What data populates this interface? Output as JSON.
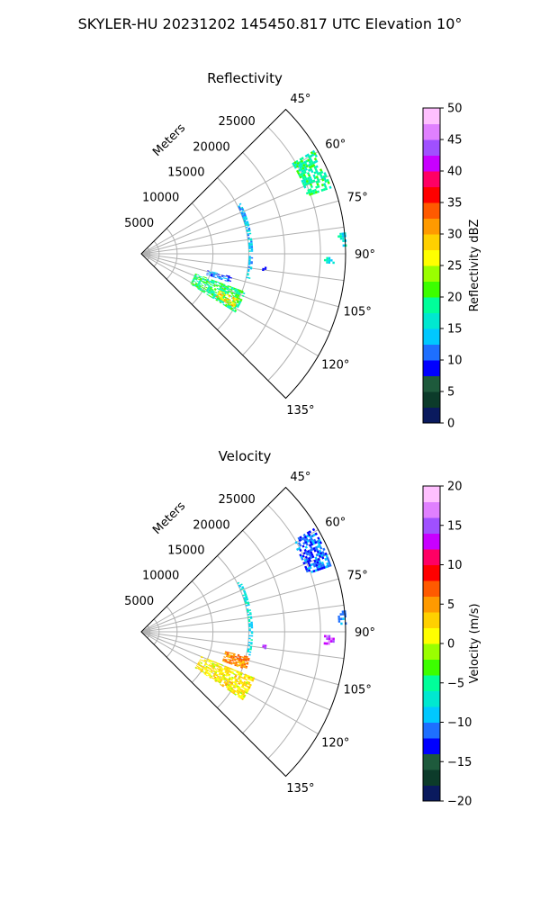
{
  "figure": {
    "title": "SKYLER-HU  20231202  145450.817 UTC Elevation 10°"
  },
  "chart_data": [
    {
      "type": "polar-sector",
      "title": "Reflectivity",
      "range_label": "Meters",
      "theta_ticks": [
        "45°",
        "60°",
        "75°",
        "90°",
        "105°",
        "120°",
        "135°"
      ],
      "r_ticks": [
        "5000",
        "10000",
        "15000",
        "20000",
        "25000"
      ],
      "theta_range_deg": [
        45,
        135
      ],
      "r_max": 28500,
      "grid": true,
      "colorbar": {
        "label": "Reflectivity dBZ",
        "ticks": [
          "0",
          "5",
          "10",
          "15",
          "20",
          "25",
          "30",
          "35",
          "40",
          "45",
          "50"
        ],
        "range": [
          0,
          50
        ]
      },
      "echoes": [
        {
          "azimuth": [
            59,
            71
          ],
          "range": [
            24500,
            28000
          ],
          "value": 18
        },
        {
          "azimuth": [
            84,
            88
          ],
          "range": [
            27500,
            28500
          ],
          "value": 16
        },
        {
          "azimuth": [
            91,
            93
          ],
          "range": [
            25500,
            26800
          ],
          "value": 17
        },
        {
          "azimuth": [
            110,
            122
          ],
          "range": [
            8000,
            15500
          ],
          "value": 19
        },
        {
          "azimuth": [
            115,
            120
          ],
          "range": [
            12000,
            15000
          ],
          "value": 28
        },
        {
          "azimuth": [
            104,
            108
          ],
          "range": [
            9500,
            13000
          ],
          "value": 11
        },
        {
          "azimuth": [
            63,
            103
          ],
          "range": [
            15000,
            15600
          ],
          "value": 13
        },
        {
          "azimuth": [
            96,
            98
          ],
          "range": [
            17000,
            17500
          ],
          "value": 9
        }
      ]
    },
    {
      "type": "polar-sector",
      "title": "Velocity",
      "range_label": "Meters",
      "theta_ticks": [
        "45°",
        "60°",
        "75°",
        "90°",
        "105°",
        "120°",
        "135°"
      ],
      "r_ticks": [
        "5000",
        "10000",
        "15000",
        "20000",
        "25000"
      ],
      "theta_range_deg": [
        45,
        135
      ],
      "r_max": 28500,
      "grid": true,
      "colorbar": {
        "label": "Velocity (m/s)",
        "ticks": [
          "−20",
          "−15",
          "−10",
          "−5",
          "0",
          "5",
          "10",
          "15",
          "20"
        ],
        "range": [
          -20,
          20
        ]
      },
      "echoes": [
        {
          "azimuth": [
            59,
            71
          ],
          "range": [
            24500,
            28000
          ],
          "value": -12
        },
        {
          "azimuth": [
            84,
            88
          ],
          "range": [
            27500,
            28500
          ],
          "value": -11
        },
        {
          "azimuth": [
            91,
            94
          ],
          "range": [
            25500,
            26800
          ],
          "value": 16
        },
        {
          "azimuth": [
            112,
            124
          ],
          "range": [
            9000,
            17000
          ],
          "value": 2
        },
        {
          "azimuth": [
            103,
            110
          ],
          "range": [
            12000,
            15500
          ],
          "value": 6
        },
        {
          "azimuth": [
            63,
            103
          ],
          "range": [
            15000,
            15600
          ],
          "value": -8
        },
        {
          "azimuth": [
            96,
            98
          ],
          "range": [
            17000,
            17500
          ],
          "value": 14
        }
      ]
    }
  ]
}
